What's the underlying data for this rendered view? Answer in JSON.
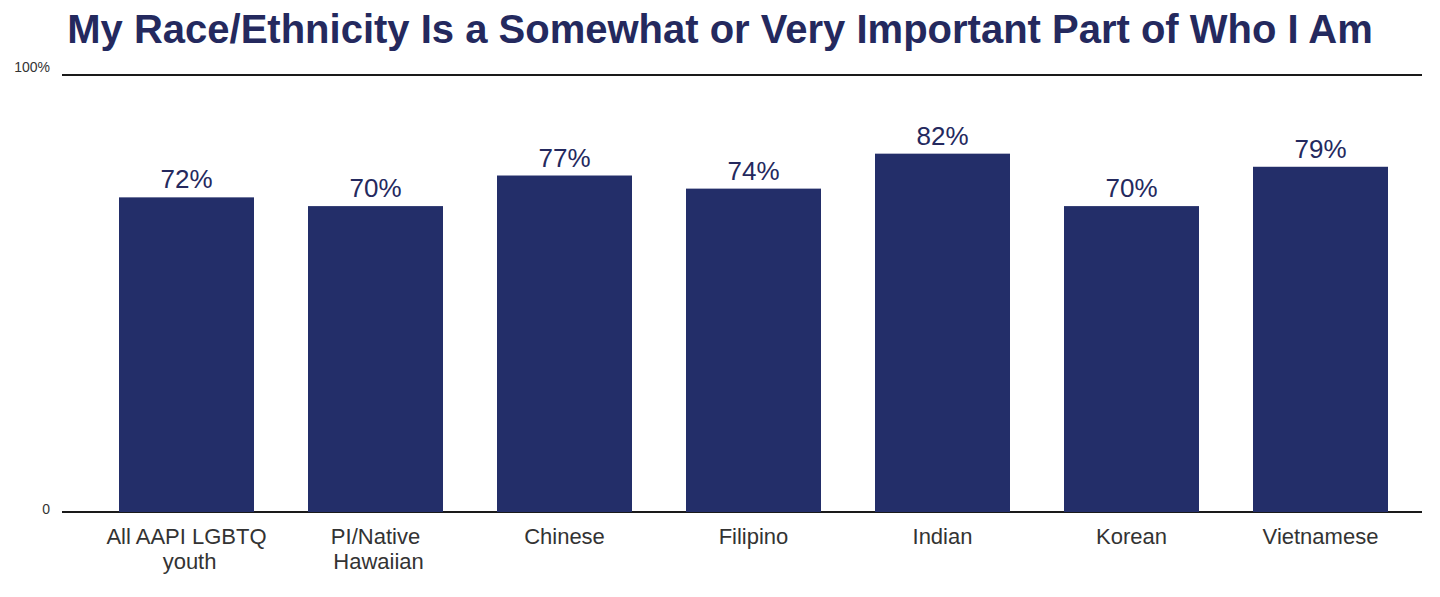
{
  "chart_data": {
    "type": "bar",
    "title": "My Race/Ethnicity Is a Somewhat or Very Important Part of Who I Am",
    "categories": [
      "All AAPI LGBTQ youth",
      "PI/Native Hawaiian",
      "Chinese",
      "Filipino",
      "Indian",
      "Korean",
      "Vietnamese"
    ],
    "values": [
      72,
      70,
      77,
      74,
      82,
      70,
      79
    ],
    "value_labels": [
      "72%",
      "70%",
      "77%",
      "74%",
      "82%",
      "70%",
      "79%"
    ],
    "color": "#232e69",
    "ylim": [
      0,
      100
    ],
    "yticks": [
      0,
      {
        "value": 100,
        "label": "100%"
      }
    ],
    "grid": true,
    "data_labels": true
  }
}
